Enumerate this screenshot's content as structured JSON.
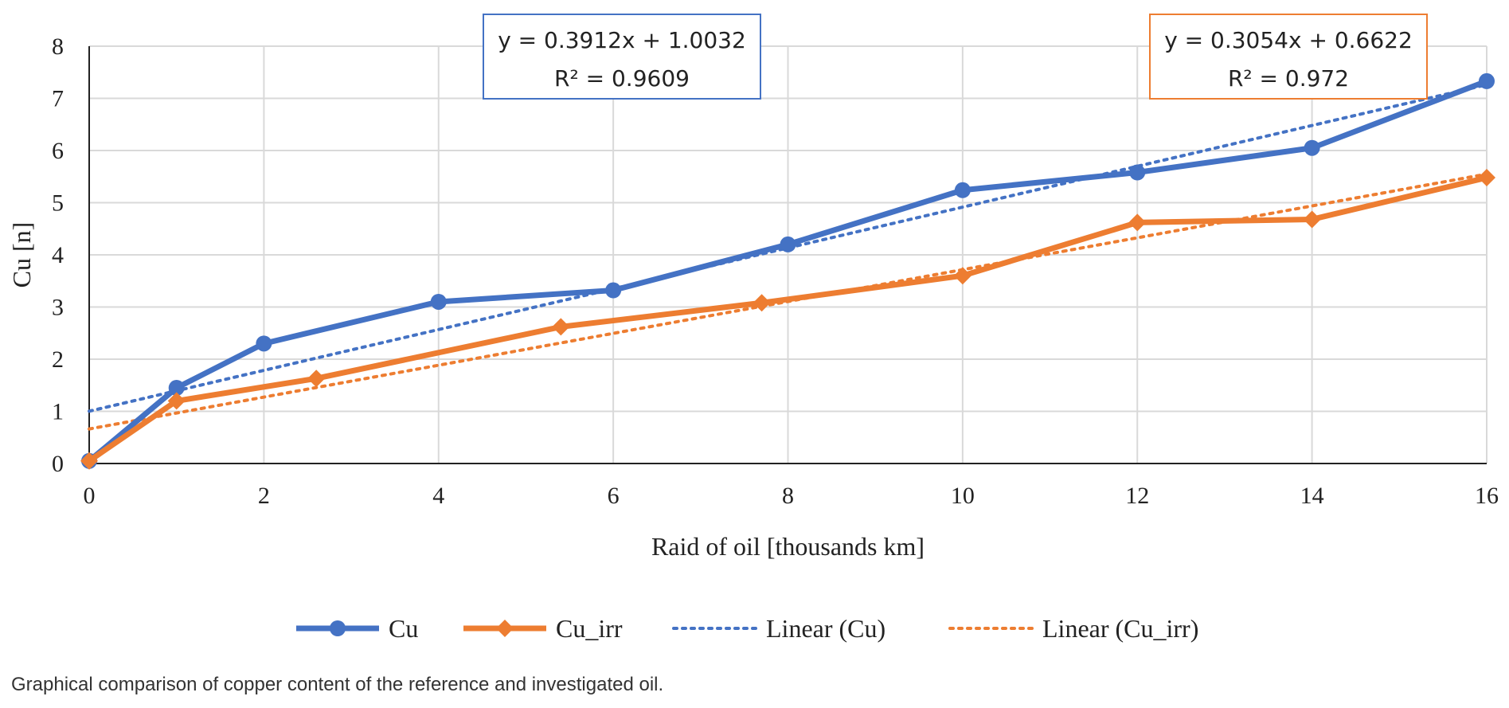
{
  "caption": "Graphical comparison of copper content of the reference and investigated oil.",
  "chart_data": {
    "type": "line",
    "xlabel": "Raid of oil [thousands km]",
    "ylabel": "Cu [n]",
    "xlim": [
      0,
      16
    ],
    "ylim": [
      0,
      8
    ],
    "x_ticks": [
      0,
      2,
      4,
      6,
      8,
      10,
      12,
      14,
      16
    ],
    "y_ticks": [
      0,
      1,
      2,
      3,
      4,
      5,
      6,
      7,
      8
    ],
    "grid": true,
    "legend_position": "bottom",
    "series": [
      {
        "name": "Cu",
        "color": "#4472C4",
        "marker": "circle",
        "points": [
          [
            0,
            0.05
          ],
          [
            1,
            1.45
          ],
          [
            2,
            2.3
          ],
          [
            4,
            3.1
          ],
          [
            6,
            3.32
          ],
          [
            8,
            4.2
          ],
          [
            10,
            5.24
          ],
          [
            12,
            5.58
          ],
          [
            14,
            6.05
          ],
          [
            16,
            7.33
          ]
        ]
      },
      {
        "name": "Cu_irr",
        "color": "#ED7D31",
        "marker": "diamond",
        "points": [
          [
            0,
            0.05
          ],
          [
            1,
            1.2
          ],
          [
            2.6,
            1.63
          ],
          [
            5.4,
            2.62
          ],
          [
            7.7,
            3.08
          ],
          [
            10,
            3.6
          ],
          [
            12,
            4.62
          ],
          [
            14,
            4.68
          ],
          [
            16,
            5.48
          ]
        ]
      }
    ],
    "trendlines": [
      {
        "name": "Linear (Cu)",
        "color": "#4472C4",
        "slope": 0.3912,
        "intercept": 1.0032,
        "equation": "y = 0.3912x + 1.0032",
        "r2": "R² = 0.9609"
      },
      {
        "name": "Linear (Cu_irr)",
        "color": "#ED7D31",
        "slope": 0.3054,
        "intercept": 0.6622,
        "equation": "y = 0.3054x + 0.6622",
        "r2": "R² = 0.972"
      }
    ]
  }
}
